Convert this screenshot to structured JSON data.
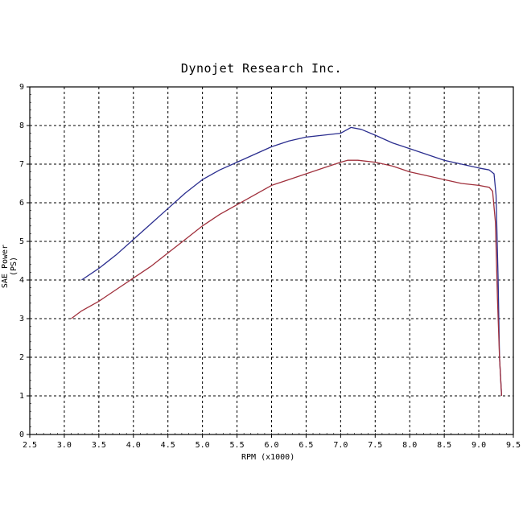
{
  "chart_data": {
    "type": "line",
    "title": "Dynojet  Research  Inc.",
    "xlabel": "RPM (x1000)",
    "ylabel": "SAE Power (PS)",
    "xlim": [
      2.5,
      9.5
    ],
    "ylim": [
      0,
      9
    ],
    "xticks": [
      "2.5",
      "3.0",
      "3.5",
      "4.0",
      "4.5",
      "5.0",
      "5.5",
      "6.0",
      "6.5",
      "7.0",
      "7.5",
      "8.0",
      "8.5",
      "9.0",
      "9.5"
    ],
    "yticks": [
      "0",
      "1",
      "2",
      "3",
      "4",
      "5",
      "6",
      "7",
      "8",
      "9"
    ],
    "grid": true,
    "series": [
      {
        "color": "#2b2e8f",
        "points": [
          [
            3.25,
            4.0
          ],
          [
            3.5,
            4.3
          ],
          [
            3.75,
            4.65
          ],
          [
            4.0,
            5.05
          ],
          [
            4.25,
            5.45
          ],
          [
            4.5,
            5.85
          ],
          [
            4.75,
            6.25
          ],
          [
            5.0,
            6.6
          ],
          [
            5.25,
            6.85
          ],
          [
            5.5,
            7.05
          ],
          [
            5.75,
            7.25
          ],
          [
            6.0,
            7.45
          ],
          [
            6.25,
            7.6
          ],
          [
            6.5,
            7.7
          ],
          [
            6.75,
            7.75
          ],
          [
            7.0,
            7.8
          ],
          [
            7.15,
            7.95
          ],
          [
            7.3,
            7.9
          ],
          [
            7.5,
            7.75
          ],
          [
            7.75,
            7.55
          ],
          [
            8.0,
            7.4
          ],
          [
            8.25,
            7.25
          ],
          [
            8.5,
            7.1
          ],
          [
            8.75,
            7.0
          ],
          [
            9.0,
            6.9
          ],
          [
            9.15,
            6.85
          ],
          [
            9.22,
            6.75
          ],
          [
            9.25,
            6.2
          ],
          [
            9.28,
            4.0
          ],
          [
            9.3,
            2.0
          ],
          [
            9.33,
            1.0
          ]
        ]
      },
      {
        "color": "#a0303c",
        "points": [
          [
            3.1,
            3.0
          ],
          [
            3.25,
            3.2
          ],
          [
            3.5,
            3.45
          ],
          [
            3.75,
            3.75
          ],
          [
            4.0,
            4.05
          ],
          [
            4.25,
            4.35
          ],
          [
            4.5,
            4.7
          ],
          [
            4.75,
            5.05
          ],
          [
            5.0,
            5.4
          ],
          [
            5.25,
            5.7
          ],
          [
            5.5,
            5.95
          ],
          [
            5.75,
            6.2
          ],
          [
            6.0,
            6.45
          ],
          [
            6.25,
            6.6
          ],
          [
            6.5,
            6.75
          ],
          [
            6.75,
            6.9
          ],
          [
            7.0,
            7.05
          ],
          [
            7.1,
            7.1
          ],
          [
            7.25,
            7.1
          ],
          [
            7.5,
            7.05
          ],
          [
            7.75,
            6.95
          ],
          [
            8.0,
            6.8
          ],
          [
            8.25,
            6.7
          ],
          [
            8.5,
            6.6
          ],
          [
            8.75,
            6.5
          ],
          [
            9.0,
            6.45
          ],
          [
            9.15,
            6.4
          ],
          [
            9.2,
            6.3
          ],
          [
            9.24,
            5.5
          ],
          [
            9.27,
            3.5
          ],
          [
            9.3,
            2.0
          ],
          [
            9.33,
            1.0
          ]
        ]
      }
    ]
  }
}
